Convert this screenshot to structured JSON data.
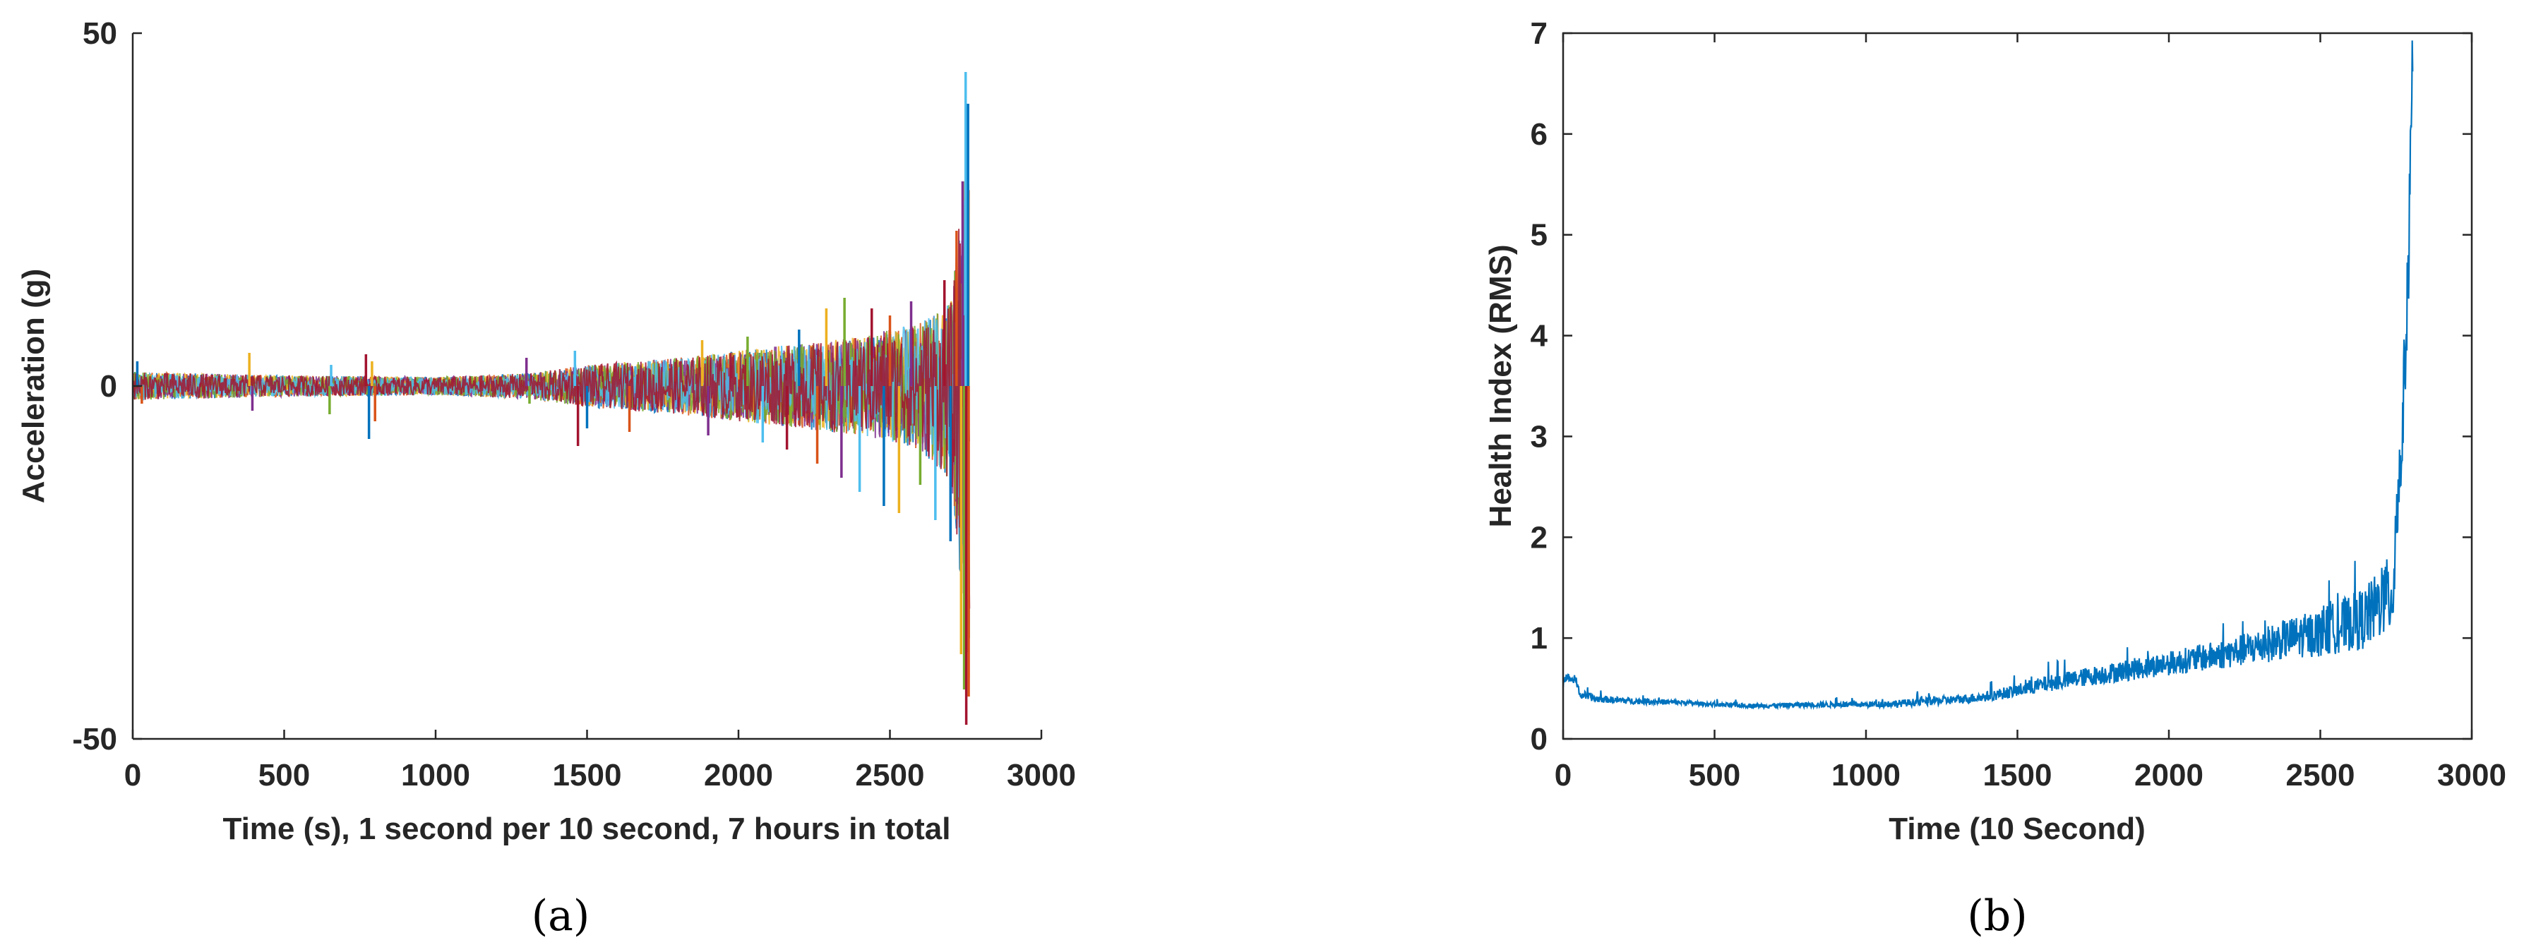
{
  "panels": [
    {
      "caption": "(a)",
      "chart_data": {
        "type": "line",
        "title": "",
        "xlabel": "Time (s), 1 second per 10 second, 7 hours in total",
        "ylabel": "Acceleration (g)",
        "xlim": [
          0,
          3000
        ],
        "ylim": [
          -50,
          50
        ],
        "xticks": [
          0,
          500,
          1000,
          1500,
          2000,
          2500,
          3000
        ],
        "yticks": [
          -50,
          0,
          50
        ],
        "xtick_labels": [
          "0",
          "500",
          "1000",
          "1500",
          "2000",
          "2500",
          "3000"
        ],
        "ytick_labels": [
          "-50",
          "0",
          "50"
        ],
        "grid": false,
        "box": false,
        "description_of_series": "many overlaid vibration records, multicolor",
        "series_colors": [
          "#0072BD",
          "#D95319",
          "#EDB120",
          "#7E2F8E",
          "#77AC30",
          "#4DBEEE",
          "#A2142F"
        ],
        "envelope": {
          "x": [
            0,
            500,
            1000,
            1300,
            1500,
            1800,
            2000,
            2200,
            2400,
            2600,
            2700,
            2720,
            2740,
            2755,
            2762
          ],
          "upper": [
            2.0,
            1.5,
            1.3,
            1.8,
            3.0,
            4.0,
            5.0,
            6.0,
            7.0,
            9.0,
            12,
            20,
            30,
            35,
            40
          ],
          "lower": [
            -2.0,
            -1.5,
            -1.3,
            -1.8,
            -3.0,
            -4.0,
            -5.0,
            -6.0,
            -7.0,
            -9.0,
            -14,
            -22,
            -32,
            -38,
            -42
          ]
        },
        "spikes": [
          {
            "x": 15,
            "y": 3.5
          },
          {
            "x": 30,
            "y": -2.5
          },
          {
            "x": 385,
            "y": 4.7
          },
          {
            "x": 395,
            "y": -3.5
          },
          {
            "x": 650,
            "y": -4
          },
          {
            "x": 655,
            "y": 3
          },
          {
            "x": 770,
            "y": 4.5
          },
          {
            "x": 780,
            "y": -7.5
          },
          {
            "x": 800,
            "y": -5
          },
          {
            "x": 790,
            "y": 3.5
          },
          {
            "x": 1300,
            "y": 4
          },
          {
            "x": 1310,
            "y": -2.5
          },
          {
            "x": 1460,
            "y": 5
          },
          {
            "x": 1470,
            "y": -8.5
          },
          {
            "x": 1500,
            "y": -6
          },
          {
            "x": 1640,
            "y": -6.5
          },
          {
            "x": 1880,
            "y": 6.5
          },
          {
            "x": 1900,
            "y": -7
          },
          {
            "x": 2030,
            "y": 7
          },
          {
            "x": 2080,
            "y": -8
          },
          {
            "x": 2160,
            "y": -9
          },
          {
            "x": 2200,
            "y": 8
          },
          {
            "x": 2260,
            "y": -11
          },
          {
            "x": 2290,
            "y": 11
          },
          {
            "x": 2340,
            "y": -13
          },
          {
            "x": 2350,
            "y": 12.5
          },
          {
            "x": 2400,
            "y": -15
          },
          {
            "x": 2440,
            "y": 11
          },
          {
            "x": 2480,
            "y": -17
          },
          {
            "x": 2500,
            "y": 10
          },
          {
            "x": 2530,
            "y": -18
          },
          {
            "x": 2570,
            "y": 12
          },
          {
            "x": 2600,
            "y": -14
          },
          {
            "x": 2650,
            "y": -19
          },
          {
            "x": 2680,
            "y": 15
          },
          {
            "x": 2700,
            "y": -22
          },
          {
            "x": 2720,
            "y": 22
          },
          {
            "x": 2735,
            "y": -38
          },
          {
            "x": 2740,
            "y": 29
          },
          {
            "x": 2745,
            "y": -43
          },
          {
            "x": 2750,
            "y": 44.5
          },
          {
            "x": 2752,
            "y": -48
          },
          {
            "x": 2758,
            "y": 40
          },
          {
            "x": 2760,
            "y": -44
          }
        ]
      }
    },
    {
      "caption": "(b)",
      "chart_data": {
        "type": "line",
        "title": "",
        "xlabel": "Time (10 Second)",
        "ylabel": "Health Index (RMS)",
        "xlim": [
          0,
          3000
        ],
        "ylim": [
          0,
          7
        ],
        "xticks": [
          0,
          500,
          1000,
          1500,
          2000,
          2500,
          3000
        ],
        "yticks": [
          0,
          1,
          2,
          3,
          4,
          5,
          6,
          7
        ],
        "xtick_labels": [
          "0",
          "500",
          "1000",
          "1500",
          "2000",
          "2500",
          "3000"
        ],
        "ytick_labels": [
          "0",
          "1",
          "2",
          "3",
          "4",
          "5",
          "6",
          "7"
        ],
        "grid": false,
        "box": true,
        "line_color": "#0072BD",
        "series": [
          {
            "x": [
              0,
              10,
              20,
              30,
              40,
              50,
              60,
              70,
              80,
              90,
              100,
              150,
              200,
              300,
              400,
              500,
              600,
              700,
              800,
              900,
              1000,
              1100,
              1200,
              1300,
              1400,
              1500,
              1600,
              1700,
              1800,
              1900,
              2000,
              2100,
              2200,
              2300,
              2400,
              2500,
              2600,
              2650,
              2700,
              2740,
              2750,
              2760,
              2770,
              2780,
              2790,
              2795,
              2800,
              2805
            ],
            "y": [
              0.55,
              0.62,
              0.6,
              0.58,
              0.6,
              0.5,
              0.42,
              0.44,
              0.41,
              0.42,
              0.4,
              0.39,
              0.38,
              0.37,
              0.36,
              0.34,
              0.33,
              0.33,
              0.34,
              0.34,
              0.34,
              0.35,
              0.37,
              0.39,
              0.42,
              0.48,
              0.55,
              0.6,
              0.65,
              0.7,
              0.75,
              0.8,
              0.85,
              0.92,
              1.0,
              1.05,
              1.15,
              1.2,
              1.35,
              1.45,
              2.2,
              2.5,
              3.0,
              3.8,
              4.5,
              5.5,
              6.3,
              6.7
            ]
          }
        ],
        "noise": {
          "x": [
            0,
            500,
            1000,
            1400,
            1600,
            2000,
            2200,
            2400,
            2600,
            2700,
            2750
          ],
          "amp": [
            0.04,
            0.02,
            0.03,
            0.05,
            0.08,
            0.12,
            0.15,
            0.2,
            0.28,
            0.35,
            0.45
          ]
        }
      }
    }
  ]
}
